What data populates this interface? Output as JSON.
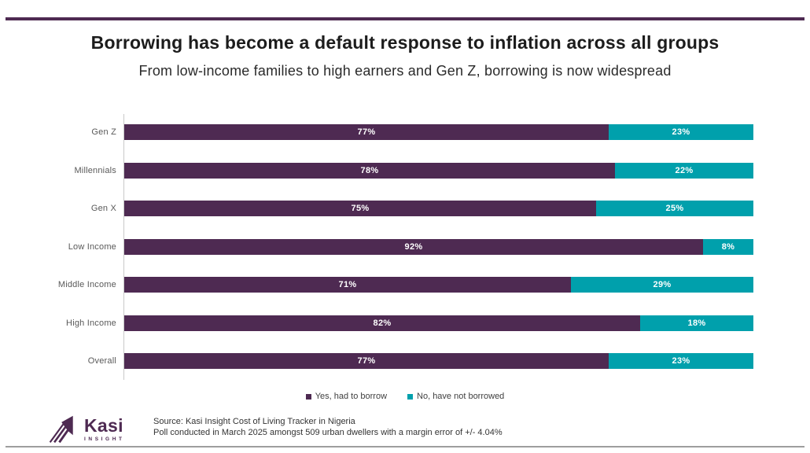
{
  "theme": {
    "purple": "#4E2A52",
    "teal": "#00A0AC",
    "bottom_rule_gray": "#9E9E9E"
  },
  "header": {
    "title": "Borrowing has become a default response to inflation across all groups",
    "subtitle": "From low-income families to high earners and Gen Z, borrowing is now widespread"
  },
  "chart_data": {
    "type": "bar",
    "orientation": "horizontal",
    "stacked": true,
    "categories": [
      "Gen Z",
      "Millennials",
      "Gen X",
      "Low Income",
      "Middle Income",
      "High Income",
      "Overall"
    ],
    "series": [
      {
        "name": "Yes, had to borrow",
        "color": "#4E2A52",
        "values": [
          77,
          78,
          75,
          92,
          71,
          82,
          77
        ]
      },
      {
        "name": "No, have not borrowed",
        "color": "#00A0AC",
        "values": [
          23,
          22,
          25,
          8,
          29,
          18,
          23
        ]
      }
    ],
    "xlim": [
      0,
      100
    ],
    "value_suffix": "%",
    "value_labels": "centered-in-segment",
    "legend_position": "bottom-center",
    "grid": false,
    "title": "Borrowing has become a default response to inflation across all groups",
    "xlabel": "",
    "ylabel": ""
  },
  "footer": {
    "logo_name": "Kasi",
    "logo_subname": "INSIGHT",
    "source_line1": "Source: Kasi Insight Cost of Living Tracker in Nigeria",
    "source_line2": "Poll conducted in March 2025 amongst  509 urban dwellers with a margin error of +/- 4.04%"
  }
}
